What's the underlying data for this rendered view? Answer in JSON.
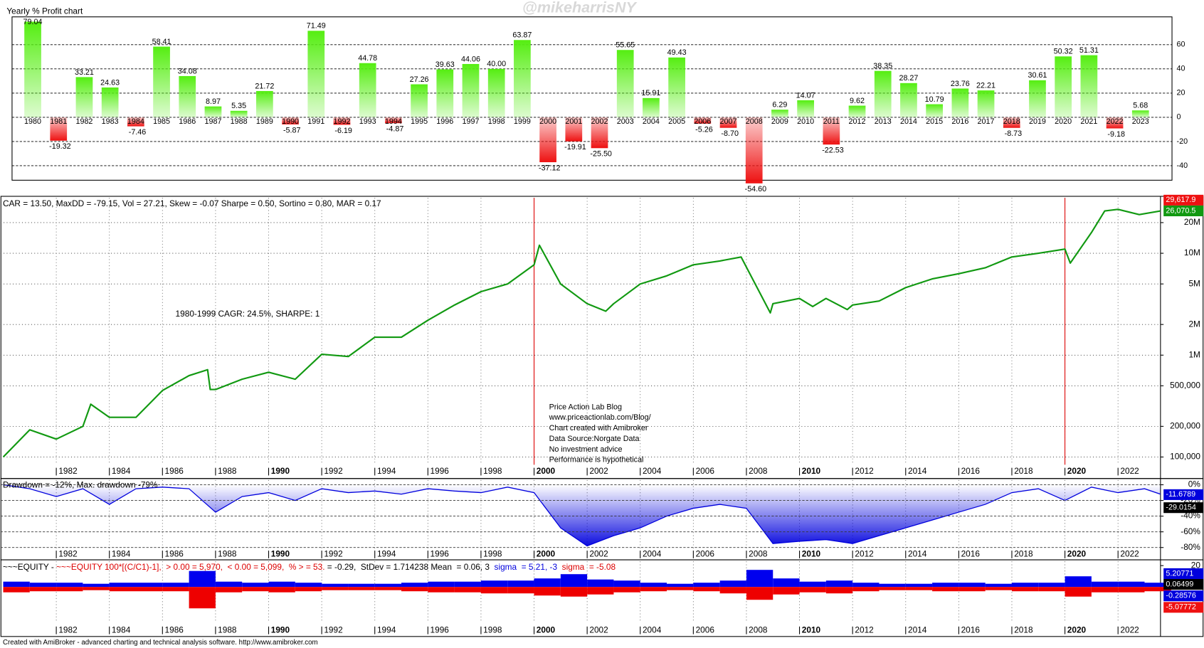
{
  "watermark": "@mikeharrisNY",
  "footer": "Created with AmiBroker - advanced charting and technical analysis software. http://www.amibroker.com",
  "chart_data": [
    {
      "type": "bar",
      "title": "Yearly % Profit chart",
      "categories": [
        "1980",
        "1981",
        "1982",
        "1983",
        "1984",
        "1985",
        "1986",
        "1987",
        "1988",
        "1989",
        "1990",
        "1991",
        "1992",
        "1993",
        "1994",
        "1995",
        "1996",
        "1997",
        "1998",
        "1999",
        "2000",
        "2001",
        "2002",
        "2003",
        "2004",
        "2005",
        "2006",
        "2007",
        "2008",
        "2009",
        "2010",
        "2011",
        "2012",
        "2013",
        "2014",
        "2015",
        "2016",
        "2017",
        "2018",
        "2019",
        "2020",
        "2021",
        "2022",
        "2023"
      ],
      "values": [
        79.04,
        -19.32,
        33.21,
        24.63,
        -7.46,
        58.41,
        34.08,
        8.97,
        5.35,
        21.72,
        -5.87,
        71.49,
        -6.19,
        44.78,
        -4.87,
        27.26,
        39.63,
        44.06,
        40,
        63.87,
        -37.12,
        -19.91,
        -25.5,
        55.65,
        15.91,
        49.43,
        -5.26,
        -8.7,
        -54.6,
        6.29,
        14.07,
        -22.53,
        9.62,
        38.35,
        28.27,
        10.79,
        23.76,
        22.21,
        -8.73,
        30.61,
        50.32,
        51.31,
        -9.18,
        5.68
      ],
      "value_labels": [
        "79.04",
        "-19.32",
        "33.21",
        "24.63",
        "-7.46",
        "58.41",
        "34.08",
        "8.97",
        "5.35",
        "21.72",
        "-5.87",
        "71.49",
        "-6.19",
        "44.78",
        "-4.87",
        "27.26",
        "39.63",
        "44.06",
        "40.00",
        "63.87",
        "-37.12",
        "-19.91",
        "-25.50",
        "55.65",
        "15.91",
        "49.43",
        "-5.26",
        "-8.70",
        "-54.60",
        "6.29",
        "14.07",
        "-22.53",
        "9.62",
        "38.35",
        "28.27",
        "10.79",
        "23.76",
        "22.21",
        "-8.73",
        "30.61",
        "50.32",
        "51.31",
        "-9.18",
        "5.68"
      ],
      "colors": {
        "positive": "#55ee11",
        "negative": "#ee1111"
      },
      "ylim": [
        -52,
        83
      ],
      "yticks": [
        -40,
        -20,
        0,
        20,
        40,
        60
      ],
      "grid": true
    },
    {
      "type": "line",
      "title": "CAR = 13.50, MaxDD = -79.15, Vol = 27.21, Skew = -0.07 Sharpe = 0.50, Sortino = 0.80, MAR = 0.17",
      "annotations": [
        "1980-1999  CAGR: 24.5%, SHARPE: 1"
      ],
      "notes": [
        "Price Action Lab Blog",
        "www.priceactionlab.com/Blog/",
        "Chart created with Amibroker",
        "Data Source:Norgate Data",
        "No investment advice",
        "Performance is hypothetical"
      ],
      "x": [
        1980,
        1981,
        1982,
        1983,
        1983.3,
        1984,
        1985,
        1986,
        1987,
        1987.7,
        1987.8,
        1988,
        1989,
        1990,
        1991,
        1992,
        1993,
        1994,
        1995,
        1996,
        1997,
        1998,
        1999,
        2000,
        2000.2,
        2001,
        2002,
        2002.7,
        2003,
        2004,
        2005,
        2006,
        2007,
        2007.8,
        2008.9,
        2009,
        2010,
        2010.5,
        2011,
        2011.8,
        2012,
        2013,
        2014,
        2015,
        2016,
        2017,
        2018,
        2019,
        2020,
        2020.2,
        2021,
        2021.5,
        2022,
        2022.8,
        2023.6
      ],
      "series": [
        {
          "color": "#119911",
          "values": [
            100000,
            185000,
            150000,
            200000,
            330000,
            245000,
            245000,
            450000,
            630000,
            720000,
            460000,
            460000,
            580000,
            680000,
            580000,
            1020000,
            970000,
            1500000,
            1500000,
            2200000,
            3100000,
            4200000,
            5000000,
            7700000,
            12000000,
            5000000,
            3200000,
            2700000,
            3200000,
            5000000,
            6000000,
            7700000,
            8400000,
            9200000,
            2600000,
            3200000,
            3600000,
            3000000,
            3600000,
            2800000,
            3100000,
            3400000,
            4600000,
            5600000,
            6300000,
            7200000,
            9200000,
            10000000,
            11000000,
            8000000,
            16000000,
            26000000,
            27000000,
            24000000,
            26000000
          ]
        }
      ],
      "log_scale": true,
      "ylim": [
        84000,
        35000000
      ],
      "yticks": [
        {
          "value": 100000,
          "label": "100,000"
        },
        {
          "value": 200000,
          "label": "200,000"
        },
        {
          "value": 500000,
          "label": "500,000"
        },
        {
          "value": 1000000,
          "label": "1M"
        },
        {
          "value": 2000000,
          "label": "2M"
        },
        {
          "value": 5000000,
          "label": "5M"
        },
        {
          "value": 10000000,
          "label": "10M"
        },
        {
          "value": 20000000,
          "label": "20M"
        }
      ],
      "xlim": [
        1979.9,
        2023.6
      ],
      "xticks": [
        1982,
        1984,
        1986,
        1988,
        1990,
        1992,
        1994,
        1996,
        1998,
        2000,
        2002,
        2004,
        2006,
        2008,
        2010,
        2012,
        2014,
        2016,
        2018,
        2020,
        2022
      ],
      "reference_x": [
        2000,
        2020
      ],
      "reference_color": "#dd0000",
      "value_tags": [
        {
          "label": "29,617.9",
          "color": "#ee1111"
        },
        {
          "label": "26,070.5",
          "color": "#119911"
        }
      ],
      "grid": true
    },
    {
      "type": "area",
      "title": "Drawdown = -12%, Max. drawdown -79%",
      "x": [
        1980,
        1981,
        1982,
        1983,
        1984,
        1985,
        1986,
        1987,
        1988,
        1989,
        1990,
        1991,
        1992,
        1993,
        1994,
        1995,
        1996,
        1997,
        1998,
        1999,
        2000,
        2001,
        2002,
        2003,
        2004,
        2005,
        2006,
        2007,
        2008,
        2009,
        2010,
        2011,
        2012,
        2013,
        2014,
        2015,
        2016,
        2017,
        2018,
        2019,
        2020,
        2021,
        2022,
        2023,
        2023.6
      ],
      "series": [
        {
          "color": "#0000dd",
          "values": [
            0,
            -5,
            -15,
            -5,
            -25,
            -5,
            -3,
            -5,
            -35,
            -15,
            -10,
            -20,
            -5,
            -10,
            -8,
            -12,
            -5,
            -8,
            -10,
            -3,
            -10,
            -55,
            -78,
            -65,
            -55,
            -40,
            -30,
            -25,
            -30,
            -75,
            -72,
            -70,
            -75,
            -65,
            -55,
            -45,
            -35,
            -25,
            -10,
            -5,
            -20,
            -3,
            -10,
            -5,
            -12
          ]
        }
      ],
      "ylim": [
        -82,
        6
      ],
      "yticks": [
        {
          "value": 0,
          "label": "0%"
        },
        {
          "value": -20,
          "label": "-20%"
        },
        {
          "value": -40,
          "label": "-40%"
        },
        {
          "value": -60,
          "label": "-60%"
        },
        {
          "value": -80,
          "label": "-80%"
        }
      ],
      "xlim": [
        1979.9,
        2023.6
      ],
      "xticks": [
        1982,
        1984,
        1986,
        1988,
        1990,
        1992,
        1994,
        1996,
        1998,
        2000,
        2002,
        2004,
        2006,
        2008,
        2010,
        2012,
        2014,
        2016,
        2018,
        2020,
        2022
      ],
      "value_tags": [
        {
          "label": "-11.6789",
          "color": "#0000dd"
        },
        {
          "label": "-29.0154",
          "color": "#000000"
        }
      ],
      "grid": true
    },
    {
      "type": "stem",
      "title_parts": [
        {
          "text": "~~~EQUITY - ",
          "color": "#000000"
        },
        {
          "text": "~~~EQUITY 100*[(C/C1)-1],  > 0.00 = 5,970,  < 0.00 = 5,099,  % > = 53.",
          "color": "#dd0000"
        },
        {
          "text": " = -0.29,  StDev = 1.714238 Mean  = 0.06, 3 ",
          "color": "#000000"
        },
        {
          "text": " sigma  = 5.21, -3 ",
          "color": "#0000dd"
        },
        {
          "text": " sigma  = -5.08",
          "color": "#dd0000"
        }
      ],
      "x": [
        1980,
        1981,
        1982,
        1983,
        1984,
        1985,
        1986,
        1987,
        1988,
        1989,
        1990,
        1991,
        1992,
        1993,
        1994,
        1995,
        1996,
        1997,
        1998,
        1999,
        2000,
        2001,
        2002,
        2003,
        2004,
        2005,
        2006,
        2007,
        2008,
        2009,
        2010,
        2011,
        2012,
        2013,
        2014,
        2015,
        2016,
        2017,
        2018,
        2019,
        2020,
        2021,
        2022,
        2023
      ],
      "series": [
        {
          "color": "#0000ee",
          "values": [
            5,
            4,
            4,
            3,
            4,
            4,
            4,
            15,
            5,
            4,
            5,
            4,
            3,
            3,
            3,
            4,
            5,
            5,
            6,
            6,
            8,
            12,
            7,
            6,
            4,
            3,
            4,
            6,
            16,
            8,
            5,
            6,
            4,
            3,
            3,
            4,
            4,
            3,
            4,
            4,
            10,
            5,
            5,
            4
          ]
        },
        {
          "color": "#ee0000",
          "values": [
            -5,
            -4,
            -4,
            -3,
            -4,
            -4,
            -4,
            -20,
            -5,
            -4,
            -5,
            -4,
            -3,
            -3,
            -3,
            -4,
            -5,
            -5,
            -6,
            -6,
            -8,
            -9,
            -7,
            -5,
            -4,
            -3,
            -4,
            -6,
            -12,
            -7,
            -5,
            -6,
            -4,
            -3,
            -3,
            -4,
            -4,
            -3,
            -4,
            -4,
            -9,
            -5,
            -5,
            -4
          ]
        }
      ],
      "ylim": [
        -32,
        24
      ],
      "yticks": [
        20
      ],
      "xlim": [
        1979.9,
        2023.6
      ],
      "xticks": [
        1982,
        1984,
        1986,
        1988,
        1990,
        1992,
        1994,
        1996,
        1998,
        2000,
        2002,
        2004,
        2006,
        2008,
        2010,
        2012,
        2014,
        2016,
        2018,
        2020,
        2022
      ],
      "value_tags": [
        {
          "label": "5.20771",
          "color": "#0000dd"
        },
        {
          "label": "0.06499",
          "color": "#000000"
        },
        {
          "label": "-0.28576",
          "color": "#0000dd"
        },
        {
          "label": "-5.07772",
          "color": "#ee1111"
        }
      ]
    }
  ]
}
